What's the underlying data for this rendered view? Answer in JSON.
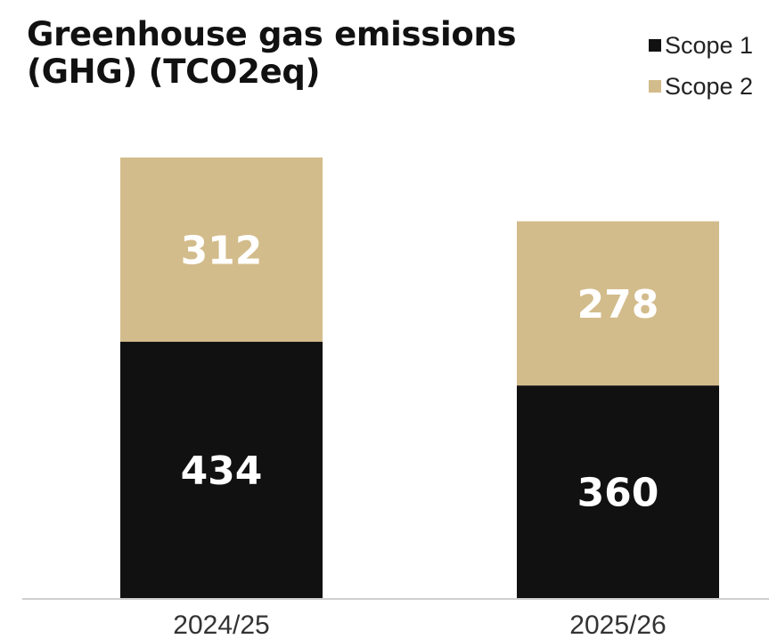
{
  "chart_data": {
    "type": "bar",
    "stacked": true,
    "title": "Greenhouse gas emissions (GHG) (TCO2eq)",
    "categories": [
      "2024/25",
      "2025/26"
    ],
    "series": [
      {
        "name": "Scope 1",
        "values": [
          434,
          360
        ],
        "color": "#111111"
      },
      {
        "name": "Scope 2",
        "values": [
          312,
          278
        ],
        "color": "#d3bc8b"
      }
    ],
    "ylim": [
      0,
      746
    ],
    "grid": false,
    "legend_position": "top-right",
    "xlabel": "",
    "ylabel": ""
  }
}
